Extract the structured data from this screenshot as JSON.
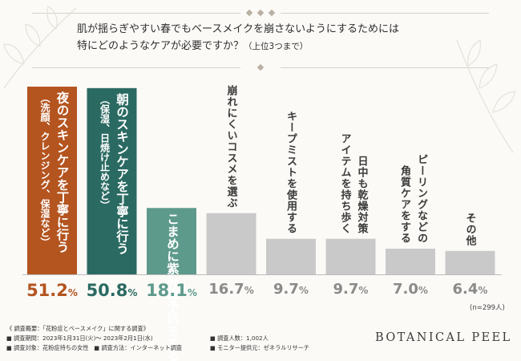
{
  "question": {
    "line1": "肌が揺らぎやすい春でもベースメイクを崩さないようにするためには",
    "line2": "特にどのようなケアが必要ですか？",
    "line2_note": "（上位3つまで）"
  },
  "chart_data": {
    "type": "bar",
    "title": "肌が揺らぎやすい春でもベースメイクを崩さないようにするためには特にどのようなケアが必要ですか？（上位3つまで）",
    "categories": [
      [
        "夜のスキンケアを丁寧に行う",
        "（洗顔、クレンジング、保湿など）"
      ],
      [
        "朝のスキンケアを丁寧に行う",
        "（保湿、日焼け止めなど）"
      ],
      [
        "こまめに紫外線予防をする"
      ],
      [
        "崩れにくいコスメを選ぶ"
      ],
      [
        "キープミストを使用する"
      ],
      [
        "日中も乾燥対策",
        "アイテムを持ち歩く"
      ],
      [
        "ピーリングなどの",
        "角質ケアをする"
      ],
      [
        "その他"
      ]
    ],
    "values": [
      51.2,
      50.8,
      18.1,
      16.7,
      9.7,
      9.7,
      7.0,
      6.4
    ],
    "value_labels": [
      {
        "num": "51.2",
        "sign": "%"
      },
      {
        "num": "50.8",
        "sign": "%"
      },
      {
        "num": "18.1",
        "sign": "%"
      },
      {
        "num": "16.7",
        "sign": "%"
      },
      {
        "num": "9.7",
        "sign": "%"
      },
      {
        "num": "9.7",
        "sign": "%"
      },
      {
        "num": "7.0",
        "sign": "%"
      },
      {
        "num": "6.4",
        "sign": "%"
      }
    ],
    "ylim": [
      0,
      51.2
    ],
    "colors": {
      "rank1": "#b4541f",
      "rank2": "#2a6a62",
      "rank3": "#5e9a8c",
      "other": "#c9c9c9",
      "label_rank1": "#b4541f",
      "label_rank2": "#2a6a62",
      "label_rank3": "#5e9a8c",
      "label_other": "#8a8a8a"
    }
  },
  "sample_note": "(n=299人)",
  "footer": {
    "survey_title": "《 調査概要：「花粉症とベースメイク」に関する調査》",
    "period": "■ 調査期間：2023年1月31日(火)～ 2023年2月1日(水)",
    "subject": "■ 調査対象：花粉症持ちの女性",
    "method": "■ 調査方法：インターネット調査",
    "count": "■ 調査人数：1,002人",
    "provider": "■ モニター提供元：ゼネラルリサーチ"
  },
  "brand": "BOTANICAL PEEL"
}
